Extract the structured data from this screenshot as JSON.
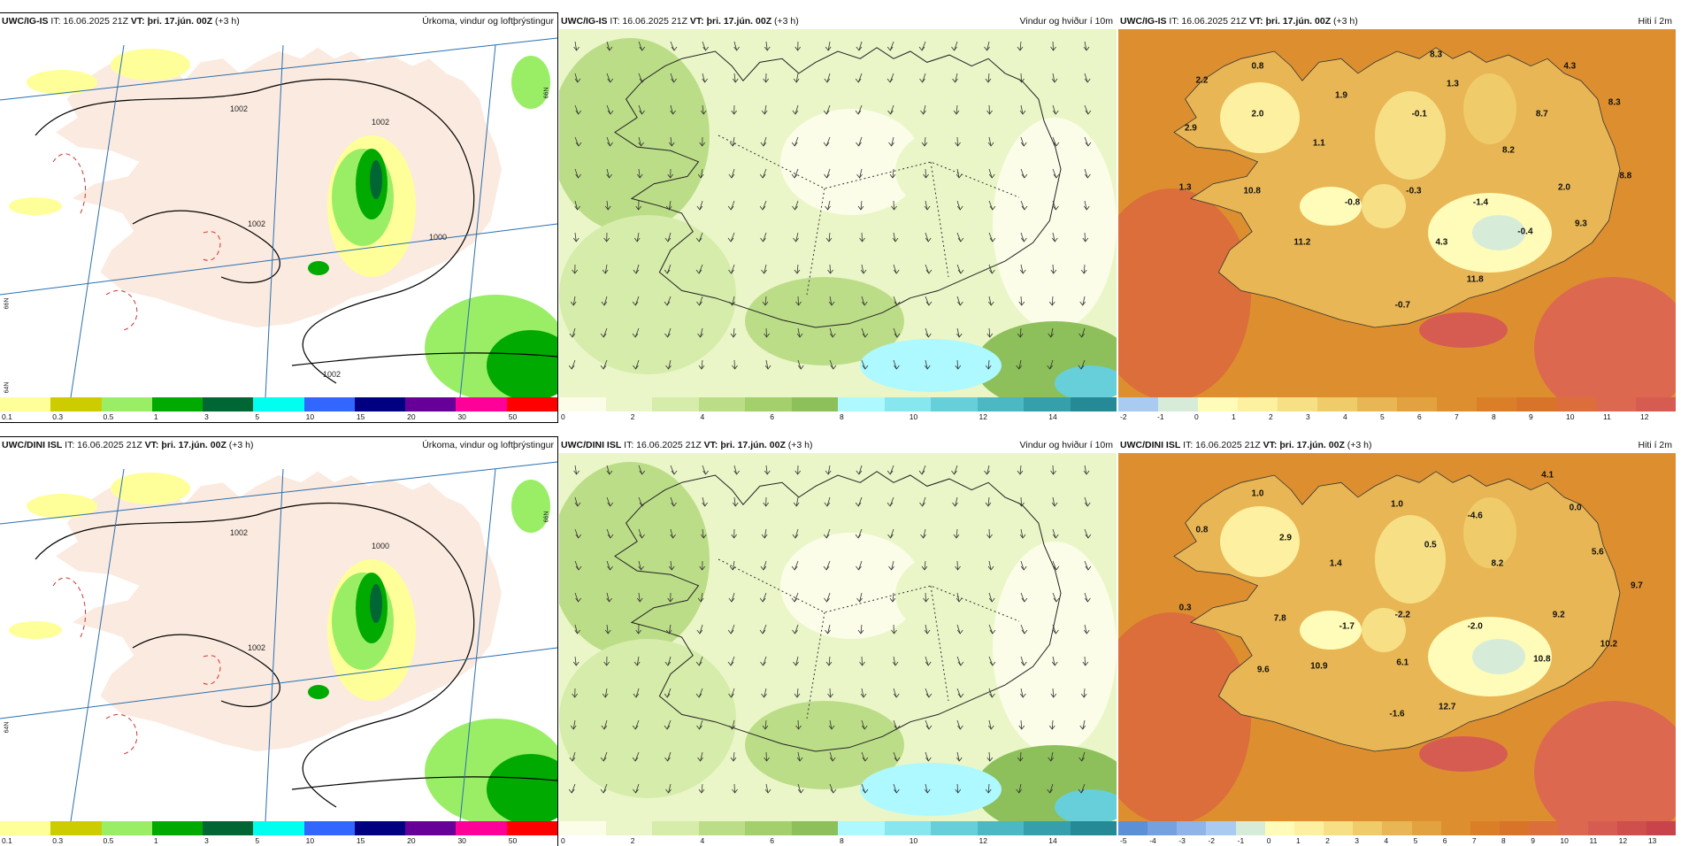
{
  "panels": [
    {
      "id": "igis-precip",
      "model": "UWC/IG-IS",
      "it": "IT: 16.06.2025 21Z",
      "vt_label": "VT:",
      "vt": "þri. 17.jún. 00Z",
      "lead": "(+3 h)",
      "title": "Úrkoma, vindur og loftþrýstingur",
      "kind": "precip",
      "legend": {
        "colors": [
          "#ffff99",
          "#cccc00",
          "#99ee66",
          "#00aa00",
          "#006633",
          "#00ffee",
          "#3366ff",
          "#000080",
          "#660099",
          "#ff0099",
          "#ff0000"
        ],
        "ticks": [
          "0.1",
          "0.3",
          "0.5",
          "1",
          "3",
          "5",
          "10",
          "15",
          "20",
          "30",
          "50"
        ]
      },
      "isolines": [
        "1002",
        "1002",
        "1002",
        "1000",
        "1002"
      ],
      "labels": [],
      "lat_labels": [
        "66N",
        "66N",
        "64N"
      ]
    },
    {
      "id": "igis-wind",
      "model": "UWC/IG-IS",
      "it": "IT: 16.06.2025 21Z",
      "vt_label": "VT:",
      "vt": "þri. 17.jún. 00Z",
      "lead": "(+3 h)",
      "title": "Vindur og hviður í 10m",
      "kind": "wind",
      "legend": {
        "colors": [
          "#fbfde8",
          "#eaf6c8",
          "#d6ecaa",
          "#bcdd88",
          "#a3cf6c",
          "#8dc05a",
          "#aef8ff",
          "#88e6ee",
          "#66cfd9",
          "#4bb8c4",
          "#35a0ac",
          "#258a96"
        ],
        "ticks": [
          "0",
          "2",
          "4",
          "6",
          "8",
          "10",
          "12",
          "14"
        ]
      },
      "labels": [],
      "isolines": [],
      "lat_labels": []
    },
    {
      "id": "igis-temp",
      "model": "UWC/IG-IS",
      "it": "IT: 16.06.2025 21Z",
      "vt_label": "VT:",
      "vt": "þri. 17.jún. 00Z",
      "lead": "(+3 h)",
      "title": "Hiti í 2m",
      "kind": "temp",
      "legend": {
        "colors": [
          "#a9cbf2",
          "#d6ecd9",
          "#fffbb8",
          "#fdf0a0",
          "#f7df86",
          "#efcb6a",
          "#e8b654",
          "#e2a23f",
          "#dd8f2f",
          "#da7f28",
          "#d8742a",
          "#db6e3a",
          "#dd6850",
          "#d65c52"
        ],
        "ticks": [
          "-2",
          "-1",
          "0",
          "1",
          "2",
          "3",
          "4",
          "5",
          "6",
          "7",
          "8",
          "9",
          "10",
          "11",
          "12"
        ]
      },
      "labels": [
        {
          "t": "8.3",
          "x": 57,
          "y": 7
        },
        {
          "t": "4.3",
          "x": 81,
          "y": 10
        },
        {
          "t": "0.8",
          "x": 25,
          "y": 10
        },
        {
          "t": "2.2",
          "x": 15,
          "y": 14
        },
        {
          "t": "1.3",
          "x": 60,
          "y": 15
        },
        {
          "t": "1.9",
          "x": 40,
          "y": 18
        },
        {
          "t": "8.3",
          "x": 89,
          "y": 20
        },
        {
          "t": "2.0",
          "x": 25,
          "y": 23
        },
        {
          "t": "-0.1",
          "x": 54,
          "y": 23
        },
        {
          "t": "8.7",
          "x": 76,
          "y": 23
        },
        {
          "t": "2.9",
          "x": 13,
          "y": 27
        },
        {
          "t": "1.1",
          "x": 36,
          "y": 31
        },
        {
          "t": "8.2",
          "x": 70,
          "y": 33
        },
        {
          "t": "8.8",
          "x": 91,
          "y": 40
        },
        {
          "t": "2.0",
          "x": 80,
          "y": 43
        },
        {
          "t": "1.3",
          "x": 12,
          "y": 43
        },
        {
          "t": "10.8",
          "x": 24,
          "y": 44
        },
        {
          "t": "-0.3",
          "x": 53,
          "y": 44
        },
        {
          "t": "-0.8",
          "x": 42,
          "y": 47
        },
        {
          "t": "-1.4",
          "x": 65,
          "y": 47
        },
        {
          "t": "9.3",
          "x": 83,
          "y": 53
        },
        {
          "t": "-0.4",
          "x": 73,
          "y": 55
        },
        {
          "t": "11.2",
          "x": 33,
          "y": 58
        },
        {
          "t": "4.3",
          "x": 58,
          "y": 58
        },
        {
          "t": "11.8",
          "x": 64,
          "y": 68
        },
        {
          "t": "-0.7",
          "x": 51,
          "y": 75
        }
      ],
      "isolines": [],
      "lat_labels": []
    },
    {
      "id": "dini-precip",
      "model": "UWC/DINI ISL",
      "it": "IT: 16.06.2025 21Z",
      "vt_label": "VT:",
      "vt": "þri. 17.jún. 00Z",
      "lead": "(+3 h)",
      "title": "Úrkoma, vindur og loftþrýstingur",
      "kind": "precip",
      "legend": {
        "colors": [
          "#ffff99",
          "#cccc00",
          "#99ee66",
          "#00aa00",
          "#006633",
          "#00ffee",
          "#3366ff",
          "#000080",
          "#660099",
          "#ff0099",
          "#ff0000"
        ],
        "ticks": [
          "0.1",
          "0.3",
          "0.5",
          "1",
          "3",
          "5",
          "10",
          "15",
          "20",
          "30",
          "50"
        ]
      },
      "isolines": [
        "1002",
        "1000",
        "1002"
      ],
      "labels": [],
      "lat_labels": [
        "66N",
        "64N"
      ]
    },
    {
      "id": "dini-wind",
      "model": "UWC/DINI ISL",
      "it": "IT: 16.06.2025 21Z",
      "vt_label": "VT:",
      "vt": "þri. 17.jún. 00Z",
      "lead": "(+3 h)",
      "title": "Vindur og hviður í 10m",
      "kind": "wind",
      "legend": {
        "colors": [
          "#fbfde8",
          "#eaf6c8",
          "#d6ecaa",
          "#bcdd88",
          "#a3cf6c",
          "#8dc05a",
          "#aef8ff",
          "#88e6ee",
          "#66cfd9",
          "#4bb8c4",
          "#35a0ac",
          "#258a96"
        ],
        "ticks": [
          "0",
          "2",
          "4",
          "6",
          "8",
          "10",
          "12",
          "14"
        ]
      },
      "labels": [],
      "isolines": [],
      "lat_labels": []
    },
    {
      "id": "dini-temp",
      "model": "UWC/DINI ISL",
      "it": "IT: 16.06.2025 21Z",
      "vt_label": "VT:",
      "vt": "þri. 17.jún. 00Z",
      "lead": "(+3 h)",
      "title": "Hiti í 2m",
      "kind": "temp",
      "legend": {
        "colors": [
          "#5b8fd6",
          "#75a2df",
          "#8fb5e8",
          "#a9cbf2",
          "#d6ecd9",
          "#fffbb8",
          "#fdf0a0",
          "#f7df86",
          "#efcb6a",
          "#e8b654",
          "#e2a23f",
          "#dd8f2f",
          "#da7f28",
          "#d8742a",
          "#db6e3a",
          "#dd6850",
          "#d65c52",
          "#cf4f4c",
          "#c8434a"
        ],
        "ticks": [
          "-5",
          "-4",
          "-3",
          "-2",
          "-1",
          "0",
          "1",
          "2",
          "3",
          "4",
          "5",
          "6",
          "7",
          "8",
          "9",
          "10",
          "11",
          "12",
          "13"
        ]
      },
      "labels": [
        {
          "t": "4.1",
          "x": 77,
          "y": 6
        },
        {
          "t": "1.0",
          "x": 25,
          "y": 11
        },
        {
          "t": "1.0",
          "x": 50,
          "y": 14
        },
        {
          "t": "-4.6",
          "x": 64,
          "y": 17
        },
        {
          "t": "0.0",
          "x": 82,
          "y": 15
        },
        {
          "t": "0.8",
          "x": 15,
          "y": 21
        },
        {
          "t": "2.9",
          "x": 30,
          "y": 23
        },
        {
          "t": "0.5",
          "x": 56,
          "y": 25
        },
        {
          "t": "5.6",
          "x": 86,
          "y": 27
        },
        {
          "t": "1.4",
          "x": 39,
          "y": 30
        },
        {
          "t": "8.2",
          "x": 68,
          "y": 30
        },
        {
          "t": "9.7",
          "x": 93,
          "y": 36
        },
        {
          "t": "0.3",
          "x": 12,
          "y": 42
        },
        {
          "t": "7.8",
          "x": 29,
          "y": 45
        },
        {
          "t": "-1.7",
          "x": 41,
          "y": 47
        },
        {
          "t": "-2.2",
          "x": 51,
          "y": 44
        },
        {
          "t": "-2.0",
          "x": 64,
          "y": 47
        },
        {
          "t": "9.2",
          "x": 79,
          "y": 44
        },
        {
          "t": "10.2",
          "x": 88,
          "y": 52
        },
        {
          "t": "6.1",
          "x": 51,
          "y": 57
        },
        {
          "t": "10.8",
          "x": 76,
          "y": 56
        },
        {
          "t": "9.6",
          "x": 26,
          "y": 59
        },
        {
          "t": "10.9",
          "x": 36,
          "y": 58
        },
        {
          "t": "12.7",
          "x": 59,
          "y": 69
        },
        {
          "t": "-1.6",
          "x": 50,
          "y": 71
        }
      ],
      "isolines": [],
      "lat_labels": []
    }
  ]
}
